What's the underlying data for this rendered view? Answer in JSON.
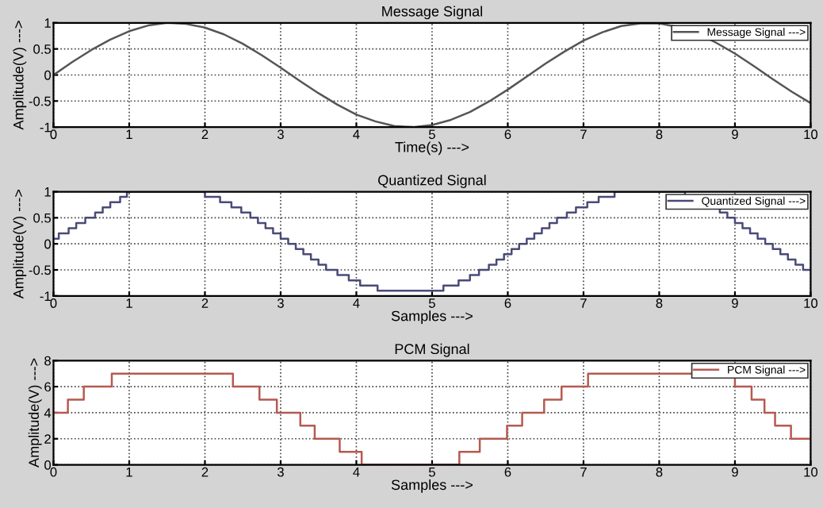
{
  "chart_data": [
    {
      "type": "line",
      "title": "Message Signal",
      "xlabel": "Time(s) --->",
      "ylabel": "Amplitude(V) --->",
      "xlim": [
        0,
        10
      ],
      "ylim": [
        -1,
        1
      ],
      "xticks": [
        0,
        1,
        2,
        3,
        4,
        5,
        6,
        7,
        8,
        9,
        10
      ],
      "yticks": [
        -1,
        -0.5,
        0,
        0.5,
        1
      ],
      "grid": true,
      "legend": "top right",
      "line_style": "solid",
      "series": [
        {
          "name": "Message Signal --->",
          "color": "#555555",
          "x": [
            0,
            0.25,
            0.5,
            0.75,
            1,
            1.25,
            1.5,
            1.75,
            2,
            2.25,
            2.5,
            2.75,
            3,
            3.25,
            3.5,
            3.75,
            4,
            4.25,
            4.5,
            4.75,
            5,
            5.25,
            5.5,
            5.75,
            6,
            6.25,
            6.5,
            6.75,
            7,
            7.25,
            7.5,
            7.75,
            8,
            8.25,
            8.5,
            8.75,
            9,
            9.25,
            9.5,
            9.75,
            10
          ],
          "values": [
            0,
            0.25,
            0.48,
            0.68,
            0.84,
            0.95,
            1.0,
            0.98,
            0.91,
            0.78,
            0.6,
            0.38,
            0.14,
            -0.11,
            -0.35,
            -0.57,
            -0.76,
            -0.89,
            -0.98,
            -1.0,
            -0.96,
            -0.86,
            -0.71,
            -0.51,
            -0.28,
            -0.03,
            0.22,
            0.45,
            0.66,
            0.82,
            0.94,
            0.99,
            0.99,
            0.92,
            0.8,
            0.62,
            0.41,
            0.17,
            -0.08,
            -0.32,
            -0.54
          ]
        }
      ]
    },
    {
      "type": "step",
      "title": "Quantized Signal",
      "xlabel": "Samples --->",
      "ylabel": "Amplitude(V) --->",
      "xlim": [
        0,
        10
      ],
      "ylim": [
        -1,
        1
      ],
      "xticks": [
        0,
        1,
        2,
        3,
        4,
        5,
        6,
        7,
        8,
        9,
        10
      ],
      "yticks": [
        -1,
        -0.5,
        0,
        0.5,
        1
      ],
      "grid": true,
      "legend": "top right",
      "line_style": "solid",
      "series": [
        {
          "name": "Quantized Signal --->",
          "color": "#4a4a78",
          "x": [
            0,
            0.07,
            0.2,
            0.3,
            0.42,
            0.55,
            0.65,
            0.75,
            0.88,
            0.97,
            2.0,
            2.2,
            2.35,
            2.48,
            2.6,
            2.7,
            2.8,
            2.9,
            3.0,
            3.1,
            3.2,
            3.3,
            3.4,
            3.5,
            3.6,
            3.75,
            3.9,
            4.05,
            4.28,
            5.15,
            5.35,
            5.5,
            5.62,
            5.75,
            5.85,
            5.95,
            6.05,
            6.15,
            6.25,
            6.35,
            6.45,
            6.55,
            6.65,
            6.78,
            6.9,
            7.05,
            7.2,
            7.41,
            8.34,
            8.55,
            8.7,
            8.8,
            8.9,
            9.0,
            9.1,
            9.2,
            9.3,
            9.4,
            9.5,
            9.6,
            9.7,
            9.8,
            9.9,
            10
          ],
          "values": [
            0.1,
            0.2,
            0.3,
            0.4,
            0.5,
            0.6,
            0.7,
            0.8,
            0.9,
            1.0,
            0.9,
            0.8,
            0.7,
            0.6,
            0.5,
            0.4,
            0.3,
            0.2,
            0.1,
            0,
            -0.1,
            -0.2,
            -0.3,
            -0.4,
            -0.5,
            -0.6,
            -0.7,
            -0.8,
            -0.9,
            -0.8,
            -0.7,
            -0.6,
            -0.5,
            -0.4,
            -0.3,
            -0.2,
            -0.1,
            0,
            0.1,
            0.2,
            0.3,
            0.4,
            0.5,
            0.6,
            0.7,
            0.8,
            0.9,
            1.0,
            0.9,
            0.8,
            0.7,
            0.6,
            0.5,
            0.4,
            0.3,
            0.2,
            0.1,
            0,
            -0.1,
            -0.2,
            -0.3,
            -0.4,
            -0.5,
            -0.5
          ]
        }
      ]
    },
    {
      "type": "step",
      "title": "PCM Signal",
      "xlabel": "Samples --->",
      "ylabel": "Amplitude(V) --->",
      "xlim": [
        0,
        10
      ],
      "ylim": [
        0,
        8
      ],
      "xticks": [
        0,
        1,
        2,
        3,
        4,
        5,
        6,
        7,
        8,
        9,
        10
      ],
      "yticks": [
        0,
        2,
        4,
        6,
        8
      ],
      "grid": true,
      "legend": "top right",
      "line_style": "solid",
      "series": [
        {
          "name": "PCM Signal --->",
          "color": "#b55a50",
          "x": [
            0,
            0.19,
            0.4,
            0.77,
            2.37,
            2.72,
            2.95,
            3.26,
            3.45,
            3.78,
            4.07,
            5.36,
            5.63,
            5.99,
            6.19,
            6.48,
            6.71,
            7.06,
            9.0,
            9.22,
            9.39,
            9.53,
            9.74,
            10
          ],
          "values": [
            4,
            5,
            6,
            7,
            6,
            5,
            4,
            3,
            2,
            1,
            0,
            1,
            2,
            3,
            4,
            5,
            6,
            7,
            6,
            5,
            4,
            3,
            2,
            2
          ]
        }
      ]
    }
  ]
}
